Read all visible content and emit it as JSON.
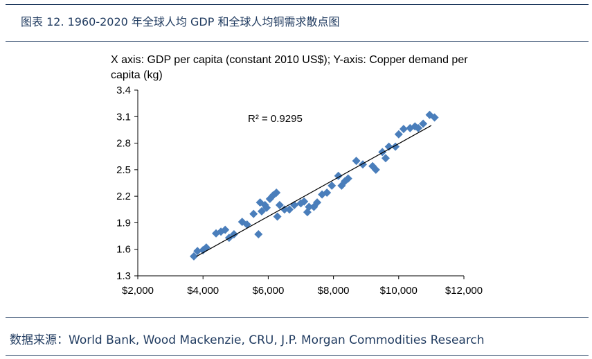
{
  "figure": {
    "caption": "图表 12. 1960-2020 年全球人均 GDP 和全球人均铜需求散点图",
    "source": "数据来源：World Bank, Wood Mackenzie, CRU, J.P. Morgan Commodities Research"
  },
  "colors": {
    "rule": "#1f3a5f",
    "points": "#4a7ebb",
    "trend": "#000000",
    "text_blue": "#1f3a5f"
  },
  "chart_data": {
    "type": "scatter",
    "title_line1": "X axis: GDP per capita (constant 2010 US$); Y-axis: Copper demand per",
    "title_line2": "capita (kg)",
    "annotation": "R² = 0.9295",
    "xlim": [
      2000,
      12000
    ],
    "ylim": [
      1.3,
      3.4
    ],
    "x_ticks": [
      2000,
      4000,
      6000,
      8000,
      10000,
      12000
    ],
    "x_tick_labels": [
      "$2,000",
      "$4,000",
      "$6,000",
      "$8,000",
      "$10,000",
      "$12,000"
    ],
    "y_ticks": [
      1.3,
      1.6,
      1.9,
      2.2,
      2.5,
      2.8,
      3.1,
      3.4
    ],
    "y_tick_labels": [
      "1.3",
      "1.6",
      "1.9",
      "2.2",
      "2.5",
      "2.8",
      "3.1",
      "3.4"
    ],
    "grid": false,
    "trendline": {
      "x": [
        3800,
        11000
      ],
      "y": [
        1.52,
        3.0
      ]
    },
    "points": [
      {
        "x": 3720,
        "y": 1.52
      },
      {
        "x": 3830,
        "y": 1.58
      },
      {
        "x": 4000,
        "y": 1.59
      },
      {
        "x": 4100,
        "y": 1.62
      },
      {
        "x": 4400,
        "y": 1.78
      },
      {
        "x": 4550,
        "y": 1.8
      },
      {
        "x": 4680,
        "y": 1.82
      },
      {
        "x": 4800,
        "y": 1.73
      },
      {
        "x": 4950,
        "y": 1.77
      },
      {
        "x": 5200,
        "y": 1.91
      },
      {
        "x": 5350,
        "y": 1.88
      },
      {
        "x": 5550,
        "y": 2.0
      },
      {
        "x": 5700,
        "y": 1.77
      },
      {
        "x": 5750,
        "y": 2.13
      },
      {
        "x": 5800,
        "y": 2.03
      },
      {
        "x": 5900,
        "y": 2.1
      },
      {
        "x": 5950,
        "y": 2.07
      },
      {
        "x": 6050,
        "y": 2.17
      },
      {
        "x": 6150,
        "y": 2.21
      },
      {
        "x": 6250,
        "y": 2.24
      },
      {
        "x": 6280,
        "y": 1.97
      },
      {
        "x": 6350,
        "y": 2.1
      },
      {
        "x": 6500,
        "y": 2.05
      },
      {
        "x": 6650,
        "y": 2.05
      },
      {
        "x": 6800,
        "y": 2.1
      },
      {
        "x": 7000,
        "y": 2.12
      },
      {
        "x": 7100,
        "y": 2.14
      },
      {
        "x": 7200,
        "y": 2.02
      },
      {
        "x": 7250,
        "y": 2.08
      },
      {
        "x": 7400,
        "y": 2.08
      },
      {
        "x": 7500,
        "y": 2.13
      },
      {
        "x": 7650,
        "y": 2.22
      },
      {
        "x": 7800,
        "y": 2.24
      },
      {
        "x": 7950,
        "y": 2.32
      },
      {
        "x": 8150,
        "y": 2.43
      },
      {
        "x": 8250,
        "y": 2.32
      },
      {
        "x": 8350,
        "y": 2.37
      },
      {
        "x": 8450,
        "y": 2.4
      },
      {
        "x": 8700,
        "y": 2.6
      },
      {
        "x": 8900,
        "y": 2.56
      },
      {
        "x": 9200,
        "y": 2.54
      },
      {
        "x": 9300,
        "y": 2.5
      },
      {
        "x": 9500,
        "y": 2.7
      },
      {
        "x": 9600,
        "y": 2.63
      },
      {
        "x": 9700,
        "y": 2.76
      },
      {
        "x": 9900,
        "y": 2.76
      },
      {
        "x": 10000,
        "y": 2.9
      },
      {
        "x": 10150,
        "y": 2.96
      },
      {
        "x": 10350,
        "y": 2.97
      },
      {
        "x": 10500,
        "y": 2.99
      },
      {
        "x": 10600,
        "y": 2.97
      },
      {
        "x": 10750,
        "y": 3.02
      },
      {
        "x": 10950,
        "y": 3.12
      },
      {
        "x": 11100,
        "y": 3.09
      }
    ]
  }
}
